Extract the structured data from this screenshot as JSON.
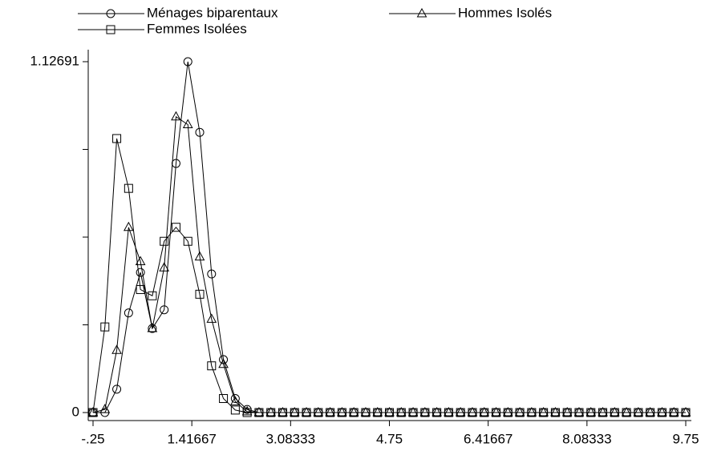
{
  "chart_data": {
    "type": "line",
    "x": [
      -0.25,
      -0.05,
      0.15,
      0.35,
      0.55,
      0.75,
      0.95,
      1.15,
      1.35,
      1.55,
      1.75,
      1.95,
      2.15,
      2.35,
      2.55,
      2.75,
      2.95,
      3.15,
      3.35,
      3.55,
      3.75,
      3.95,
      4.15,
      4.35,
      4.55,
      4.75,
      4.95,
      5.15,
      5.35,
      5.55,
      5.75,
      5.95,
      6.15,
      6.35,
      6.55,
      6.75,
      6.95,
      7.15,
      7.35,
      7.55,
      7.75,
      7.95,
      8.15,
      8.35,
      8.55,
      8.75,
      8.95,
      9.15,
      9.35,
      9.55,
      9.75
    ],
    "series": [
      {
        "name": "Ménages biparentaux",
        "color": "#000000",
        "marker": "circle",
        "values": [
          0,
          0,
          0.075,
          0.32,
          0.45,
          0.27,
          0.33,
          0.8,
          1.12691,
          0.9,
          0.445,
          0.17,
          0.045,
          0.01,
          0,
          0,
          0,
          0,
          0,
          0,
          0,
          0,
          0,
          0,
          0,
          0,
          0,
          0,
          0,
          0,
          0,
          0,
          0,
          0,
          0,
          0,
          0,
          0,
          0,
          0,
          0,
          0,
          0,
          0,
          0,
          0,
          0,
          0,
          0,
          0,
          0
        ]
      },
      {
        "name": "Hommes Isolés",
        "color": "#000000",
        "marker": "triangle",
        "values": [
          0,
          0.01,
          0.2,
          0.595,
          0.485,
          0.27,
          0.465,
          0.95,
          0.925,
          0.5,
          0.3,
          0.155,
          0.035,
          0.003,
          0,
          0,
          0,
          0,
          0,
          0,
          0,
          0,
          0,
          0,
          0,
          0,
          0,
          0,
          0,
          0,
          0,
          0,
          0,
          0,
          0,
          0,
          0,
          0,
          0,
          0,
          0,
          0,
          0,
          0,
          0,
          0,
          0,
          0,
          0,
          0,
          0
        ]
      },
      {
        "name": "Femmes Isolées",
        "color": "#000000",
        "marker": "square",
        "values": [
          0,
          0.275,
          0.88,
          0.72,
          0.395,
          0.375,
          0.55,
          0.595,
          0.55,
          0.38,
          0.15,
          0.045,
          0.008,
          0,
          0,
          0,
          0,
          0,
          0,
          0,
          0,
          0,
          0,
          0,
          0,
          0,
          0,
          0,
          0,
          0,
          0,
          0,
          0,
          0,
          0,
          0,
          0,
          0,
          0,
          0,
          0,
          0,
          0,
          0,
          0,
          0,
          0,
          0,
          0,
          0,
          0
        ]
      }
    ],
    "xlim": [
      -0.25,
      9.75
    ],
    "xticks": [
      {
        "value": -0.25,
        "label": "-.25"
      },
      1.41667,
      3.08333,
      4.75,
      6.41667,
      8.08333,
      9.75
    ],
    "ylim": [
      0,
      1.12691
    ],
    "yticks": [
      0,
      1.12691
    ],
    "yminor_ticks": [
      0.2817275,
      0.563455,
      0.8451825
    ],
    "grid": false
  }
}
